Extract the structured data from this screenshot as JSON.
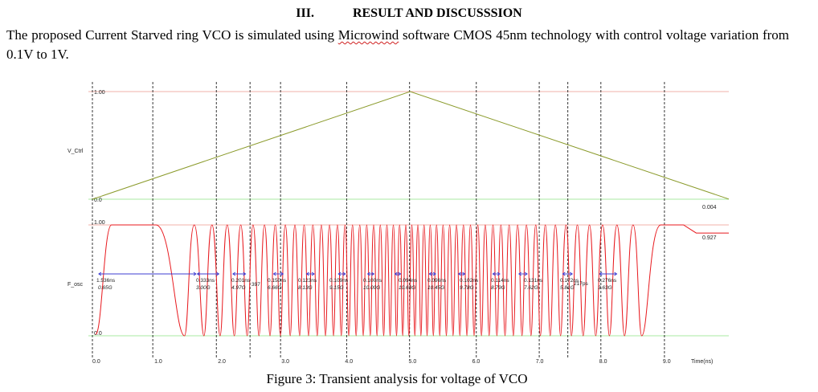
{
  "section": {
    "number": "III.",
    "title": "RESULT AND DISCUSSSION"
  },
  "paragraph": {
    "before": "The proposed Current Starved ring VCO is simulated using ",
    "software": "Microwind",
    "after": " software CMOS 45nm technology with control voltage variation from 0.1V to 1V."
  },
  "figure": {
    "caption": "Figure 3: Transient analysis for voltage of VCO",
    "x_ticks": [
      "0.0",
      "1.0",
      "2.0",
      "3.0",
      "4.0",
      "5.0",
      "6.0",
      "7.0",
      "8.0",
      "9.0"
    ],
    "x_axis_label": "Time(ns)",
    "colors": {
      "ctrl_trace": "#8a9a2a",
      "osc_trace": "#e8191e",
      "upper_guide": "#f2b0a8",
      "lower_guide": "#a8e8a0",
      "measure": "#3c3cd2",
      "cursor": "#202020"
    },
    "panels": [
      {
        "signal": "V_Ctrl",
        "top_label": "1.00",
        "bottom_label": "0.0",
        "end_value": "0.004",
        "waveform": {
          "type": "triangle",
          "points_ns_v": [
            [
              0.0,
              0.0
            ],
            [
              5.0,
              1.0
            ],
            [
              10.0,
              0.004
            ]
          ]
        }
      },
      {
        "signal": "F_osc",
        "top_label": "1.00",
        "bottom_label": "0.0",
        "end_value": "0.927",
        "waveform": {
          "type": "oscillation",
          "high": 1.0,
          "low": 0.0,
          "end_level": 0.927
        },
        "measurements": [
          {
            "period": "1.536ns",
            "freq": "0.65G"
          },
          {
            "period": "0.333ns",
            "freq": "3.00G"
          },
          {
            "period": "0.201ns",
            "freq": "4.97G"
          },
          {
            "period": "397",
            "freq": ""
          },
          {
            "period": "0.150ns",
            "freq": "6.66G"
          },
          {
            "period": "0.123ns",
            "freq": "8.13G"
          },
          {
            "period": "0.109ns",
            "freq": "9.15G"
          },
          {
            "period": "0.100ns",
            "freq": "10.00G"
          },
          {
            "period": "0.094ns",
            "freq": "10.63G"
          },
          {
            "period": "0.096ns",
            "freq": "10.45G"
          },
          {
            "period": "0.102ns",
            "freq": "9.78G"
          },
          {
            "period": "0.114ns",
            "freq": "8.79G"
          },
          {
            "period": "0.131ns",
            "freq": "7.62G"
          },
          {
            "period": "0.172ns",
            "freq": "5.81G"
          },
          {
            "period": "217ps",
            "freq": ""
          },
          {
            "period": "0.276ns",
            "freq": "3.63G"
          }
        ]
      }
    ]
  }
}
